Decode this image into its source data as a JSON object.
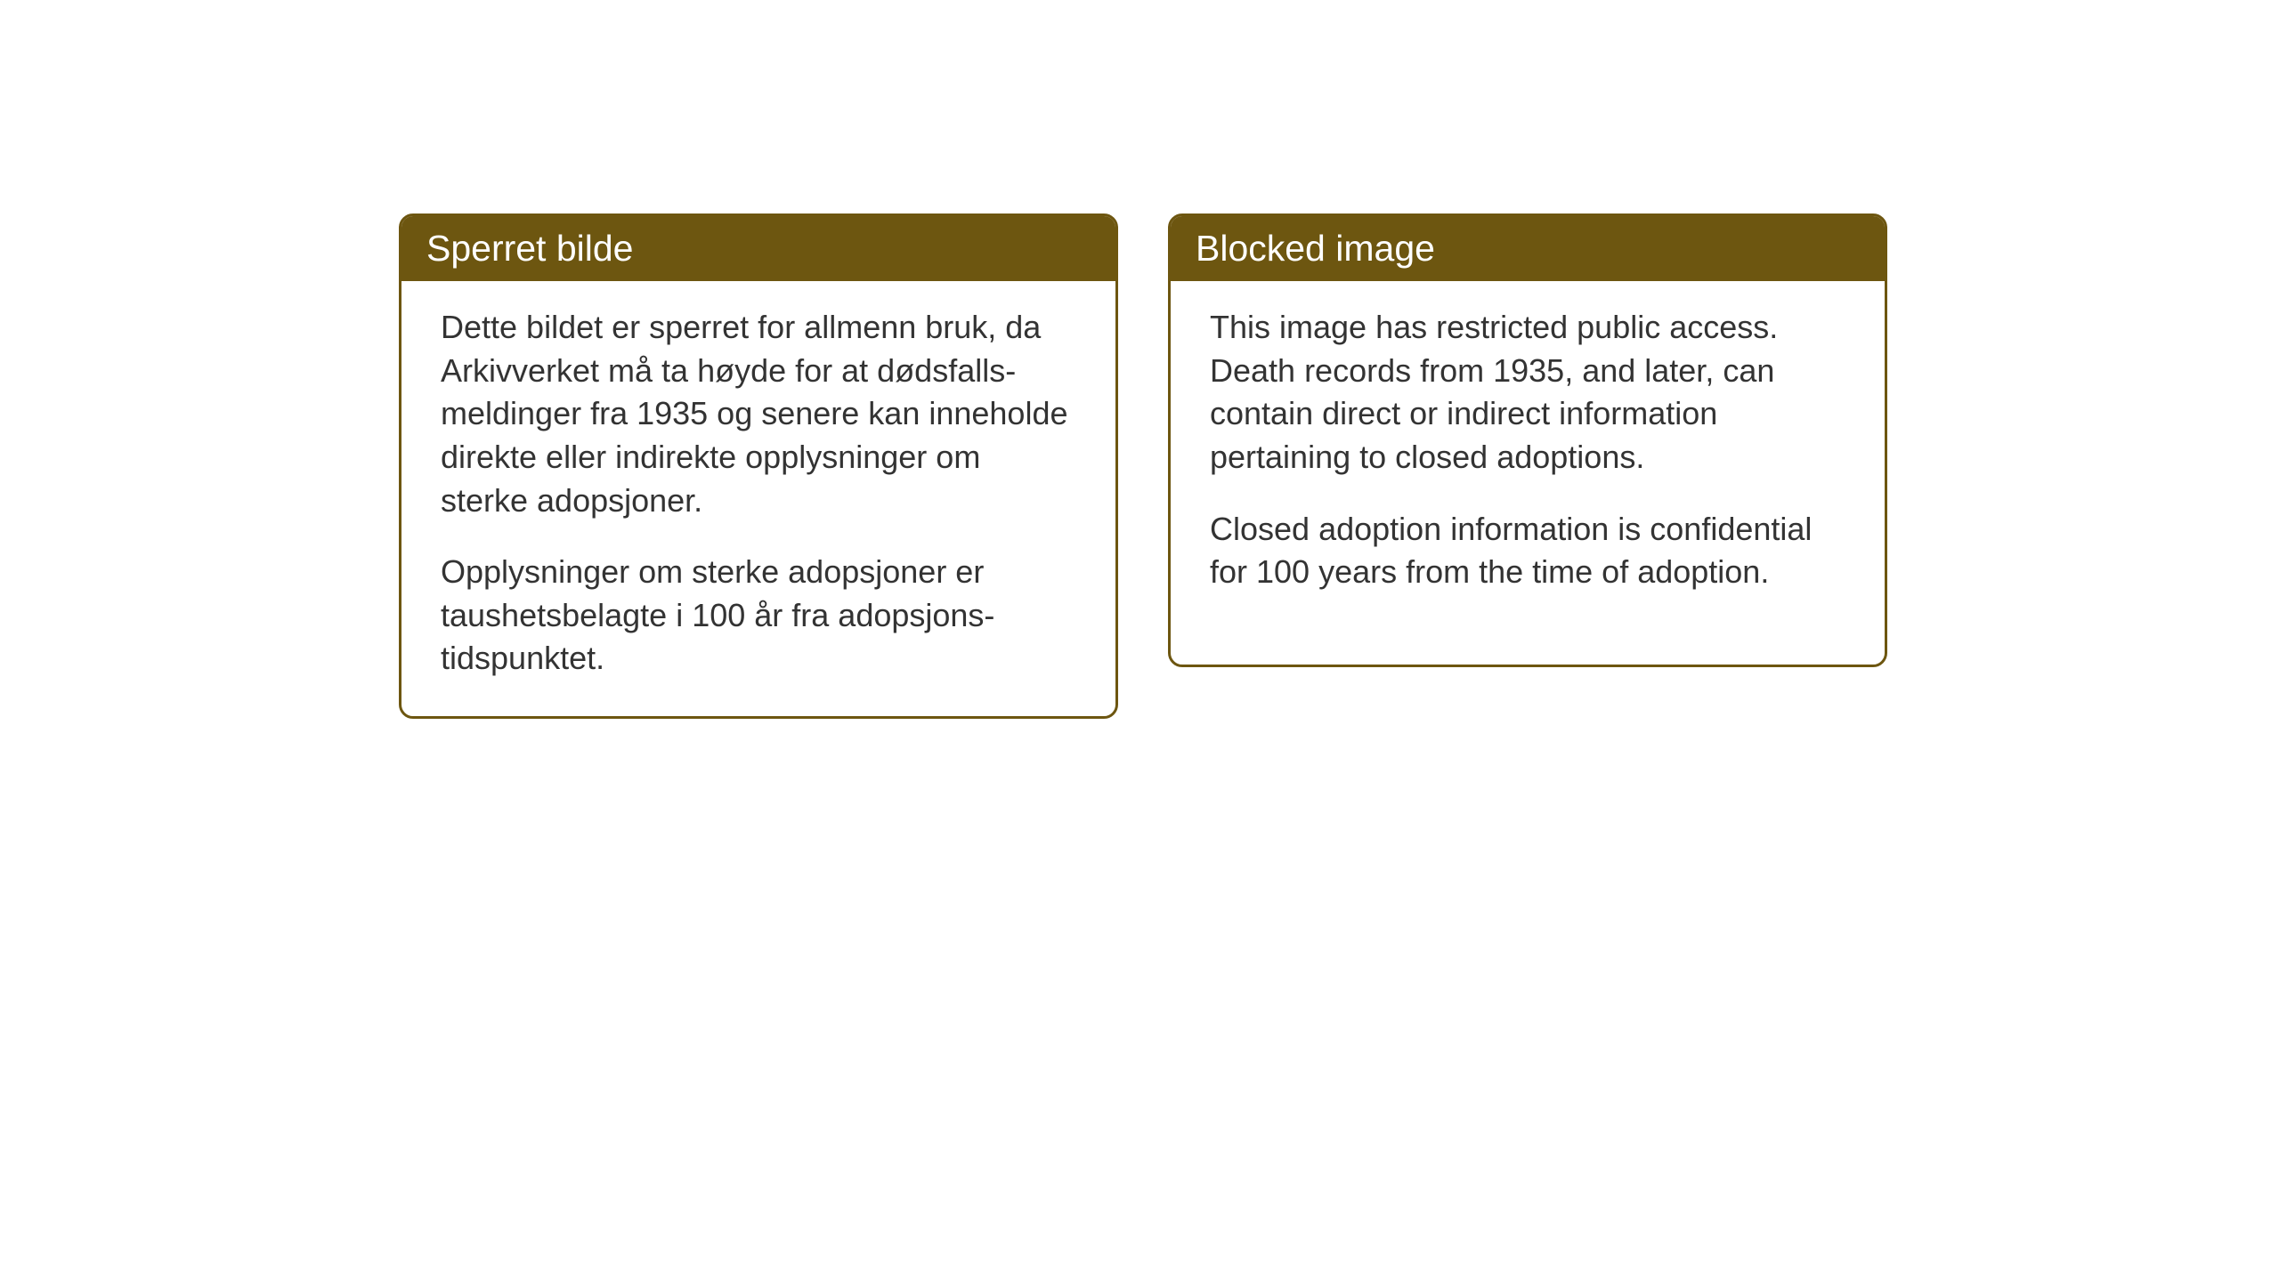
{
  "cards": {
    "left": {
      "title": "Sperret bilde",
      "paragraph1": "Dette bildet er sperret for allmenn bruk, da Arkivverket må ta høyde for at dødsfalls-meldinger fra 1935 og senere kan inneholde direkte eller indirekte opplysninger om sterke adopsjoner.",
      "paragraph2": "Opplysninger om sterke adopsjoner er taushetsbelagte i 100 år fra adopsjons-tidspunktet."
    },
    "right": {
      "title": "Blocked image",
      "paragraph1": "This image has restricted public access. Death records from 1935, and later, can contain direct or indirect information pertaining to closed adoptions.",
      "paragraph2": "Closed adoption information is confidential for 100 years from the time of adoption."
    }
  },
  "styling": {
    "header_bg_color": "#6d5610",
    "header_text_color": "#ffffff",
    "border_color": "#6d5610",
    "body_text_color": "#333333",
    "background_color": "#ffffff",
    "title_fontsize": 41,
    "body_fontsize": 36,
    "border_radius": 16,
    "border_width": 3
  }
}
